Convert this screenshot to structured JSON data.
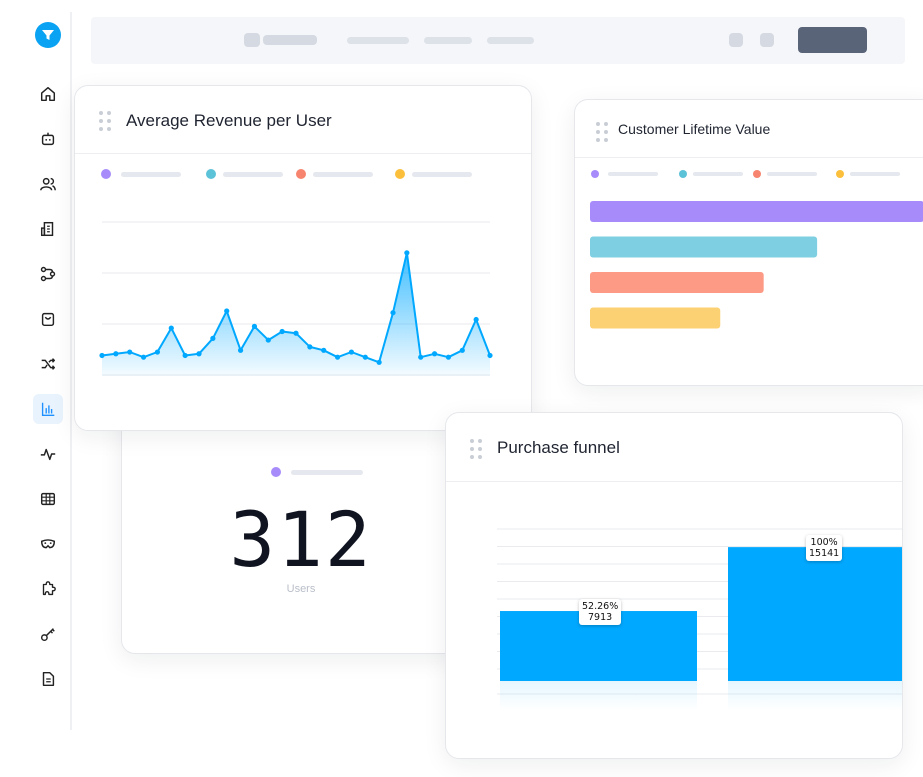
{
  "sidebar": {
    "logo_icon": "funnel-logo-icon",
    "items": [
      {
        "icon": "home-icon"
      },
      {
        "icon": "robot-icon"
      },
      {
        "icon": "users-icon"
      },
      {
        "icon": "building-icon"
      },
      {
        "icon": "flow-icon"
      },
      {
        "icon": "shopping-bag-icon"
      },
      {
        "icon": "shuffle-icon"
      },
      {
        "icon": "bar-chart-icon",
        "active": true
      },
      {
        "icon": "activity-icon"
      },
      {
        "icon": "table-icon"
      },
      {
        "icon": "mask-icon"
      },
      {
        "icon": "puzzle-icon"
      },
      {
        "icon": "key-icon"
      },
      {
        "icon": "document-icon"
      }
    ]
  },
  "colors": {
    "accent": "#0aa2f2",
    "purple": "#a78bfa",
    "teal": "#7ecfe1",
    "coral": "#fd9a85",
    "yellow": "#fcd174",
    "bar_blue": "#00a8ff"
  },
  "arpu": {
    "title": "Average Revenue per User",
    "chart_data": {
      "type": "area",
      "series": [
        {
          "values": [
            12,
            13,
            14,
            11,
            14,
            28,
            12,
            13,
            22,
            38,
            15,
            29,
            21,
            26,
            25,
            17,
            15,
            11,
            14,
            11,
            8,
            37,
            72,
            11,
            13,
            11,
            15,
            33,
            12
          ]
        }
      ],
      "ylim": [
        0,
        90
      ],
      "grid": true
    }
  },
  "clv": {
    "title": "Customer Lifetime Value",
    "chart_data": {
      "type": "bar",
      "orientation": "horizontal",
      "values": [
        100,
        68,
        52,
        39
      ],
      "colors": [
        "#a78bfa",
        "#7ecfe1",
        "#fd9a85",
        "#fcd174"
      ]
    }
  },
  "users": {
    "value": "312",
    "label": "Users"
  },
  "funnel": {
    "title": "Purchase funnel",
    "chart_data": {
      "type": "bar",
      "values": [
        7913,
        15141
      ],
      "percents": [
        "52.26%",
        "100%"
      ],
      "labels": [
        "7913",
        "15141"
      ],
      "ylim": [
        0,
        19000
      ],
      "grid": true
    }
  }
}
